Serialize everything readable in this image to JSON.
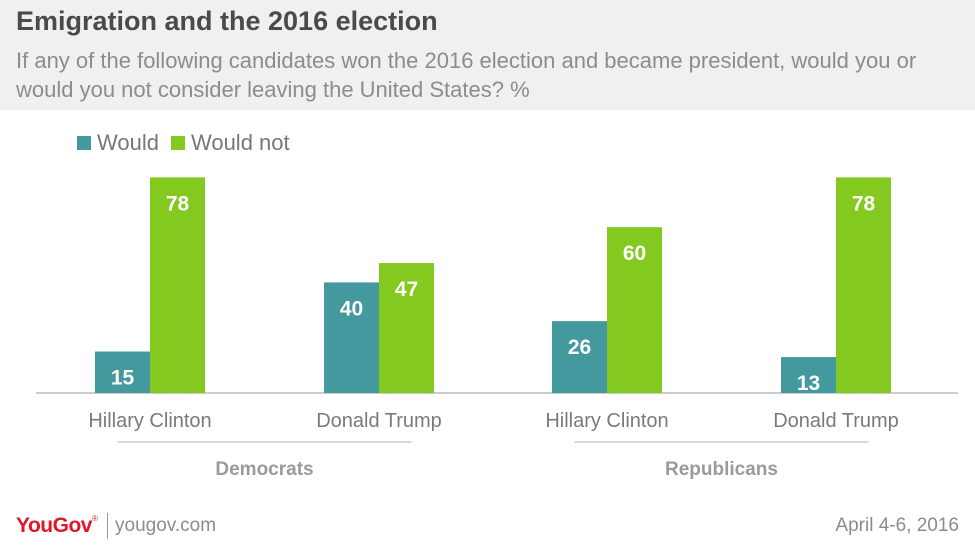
{
  "header": {
    "title": "Emigration and the 2016 election",
    "subtitle": "If any of the following candidates won the 2016 election and became president, would you or would you not consider leaving the United States? %"
  },
  "colors": {
    "would": "#43999e",
    "would_not": "#84c91f",
    "header_bg": "#f0f0f0"
  },
  "chart_data": {
    "type": "bar",
    "title": "Emigration and the 2016 election",
    "categories": [
      "Hillary Clinton",
      "Donald Trump",
      "Hillary Clinton",
      "Donald Trump"
    ],
    "groups": [
      {
        "label": "Democrats",
        "categories": [
          "Hillary Clinton",
          "Donald Trump"
        ]
      },
      {
        "label": "Republicans",
        "categories": [
          "Hillary Clinton",
          "Donald Trump"
        ]
      }
    ],
    "series": [
      {
        "name": "Would",
        "values": [
          15,
          40,
          26,
          13
        ]
      },
      {
        "name": "Would not",
        "values": [
          78,
          47,
          60,
          78
        ]
      }
    ],
    "ylim": [
      0,
      85
    ],
    "grid": false,
    "legend": "top-left"
  },
  "footer": {
    "logo": "YouGov",
    "logo_mark": "®",
    "site": "yougov.com",
    "date": "April 4-6, 2016"
  }
}
